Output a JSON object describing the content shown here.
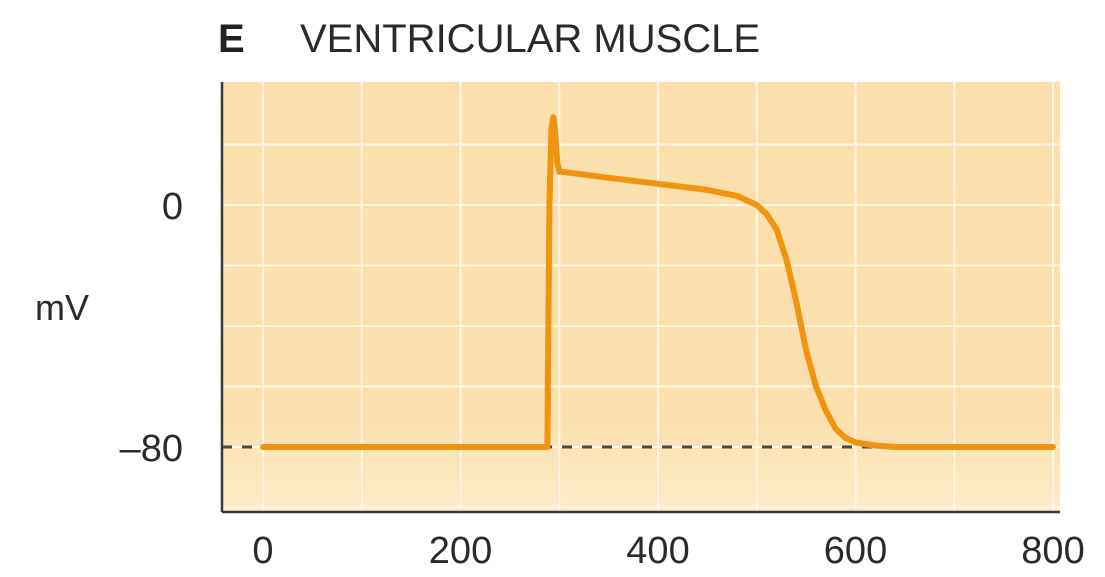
{
  "panel": {
    "letter": "E",
    "title": "VENTRICULAR MUSCLE"
  },
  "colors": {
    "background": "#fbe0ae",
    "background_bottom": "#fdebc9",
    "grid": "#fff6e6",
    "trace": "#f0940f",
    "axis": "#3a3a3a",
    "dashed_baseline": "#4a4a4a"
  },
  "chart_data": {
    "type": "line",
    "title": "VENTRICULAR MUSCLE",
    "xlabel": "",
    "ylabel": "mV",
    "xlim": [
      -20,
      800
    ],
    "ylim": [
      -100,
      30
    ],
    "xticks": [
      0,
      200,
      400,
      600,
      800
    ],
    "xtick_labels": [
      "0",
      "200",
      "400",
      "600",
      "800"
    ],
    "yticks": [
      0,
      -80
    ],
    "ytick_labels": [
      "0",
      "–80"
    ],
    "grid": true,
    "resting_potential_dashed": -80,
    "series": [
      {
        "x": [
          0,
          200,
          288,
          290,
          292,
          294,
          296,
          298,
          300,
          302,
          350,
          400,
          450,
          480,
          500,
          510,
          520,
          530,
          540,
          550,
          560,
          570,
          580,
          590,
          600,
          620,
          640,
          700,
          800
        ],
        "y": [
          -80,
          -80,
          -80,
          0,
          25,
          29,
          24,
          14,
          11,
          11,
          9,
          7,
          5,
          3,
          0,
          -3,
          -8,
          -18,
          -32,
          -48,
          -60,
          -68,
          -74,
          -77,
          -78.5,
          -79.5,
          -80,
          -80,
          -80
        ]
      }
    ]
  }
}
